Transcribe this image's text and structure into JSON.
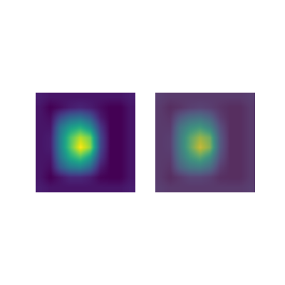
{
  "chart_data": [
    {
      "type": "heatmap",
      "color": "viridis",
      "tick_labels": false,
      "cells": [
        [
          0.12,
          0.1,
          0.1,
          0.1,
          0.1,
          0.1,
          0.1,
          0.1,
          0.1,
          0.12
        ],
        [
          0.1,
          0.05,
          0.08,
          0.12,
          0.14,
          0.12,
          0.08,
          0.05,
          0.05,
          0.1
        ],
        [
          0.1,
          0.08,
          0.25,
          0.35,
          0.38,
          0.3,
          0.12,
          0.05,
          0.05,
          0.1
        ],
        [
          0.1,
          0.1,
          0.4,
          0.55,
          0.62,
          0.5,
          0.2,
          0.05,
          0.05,
          0.1
        ],
        [
          0.1,
          0.12,
          0.45,
          0.7,
          0.85,
          0.75,
          0.25,
          0.05,
          0.05,
          0.1
        ],
        [
          0.1,
          0.12,
          0.45,
          0.72,
          0.95,
          0.8,
          0.25,
          0.05,
          0.05,
          0.1
        ],
        [
          0.1,
          0.1,
          0.4,
          0.6,
          0.7,
          0.55,
          0.2,
          0.05,
          0.05,
          0.1
        ],
        [
          0.1,
          0.08,
          0.3,
          0.42,
          0.45,
          0.35,
          0.12,
          0.05,
          0.05,
          0.1
        ],
        [
          0.1,
          0.05,
          0.1,
          0.15,
          0.15,
          0.12,
          0.06,
          0.05,
          0.05,
          0.1
        ],
        [
          0.12,
          0.1,
          0.1,
          0.1,
          0.1,
          0.1,
          0.1,
          0.1,
          0.1,
          0.12
        ]
      ]
    },
    {
      "type": "overlay",
      "color": "viridis",
      "tick_labels": false,
      "cells": [
        [
          0.12,
          0.1,
          0.1,
          0.1,
          0.1,
          0.1,
          0.1,
          0.1,
          0.1,
          0.12
        ],
        [
          0.1,
          0.05,
          0.08,
          0.12,
          0.14,
          0.12,
          0.08,
          0.05,
          0.05,
          0.1
        ],
        [
          0.1,
          0.08,
          0.25,
          0.35,
          0.38,
          0.3,
          0.12,
          0.05,
          0.05,
          0.1
        ],
        [
          0.1,
          0.1,
          0.4,
          0.55,
          0.62,
          0.5,
          0.2,
          0.05,
          0.05,
          0.1
        ],
        [
          0.1,
          0.12,
          0.45,
          0.7,
          0.85,
          0.75,
          0.25,
          0.05,
          0.05,
          0.1
        ],
        [
          0.1,
          0.12,
          0.45,
          0.72,
          0.95,
          0.8,
          0.25,
          0.05,
          0.05,
          0.1
        ],
        [
          0.1,
          0.1,
          0.4,
          0.6,
          0.7,
          0.55,
          0.2,
          0.05,
          0.05,
          0.1
        ],
        [
          0.1,
          0.08,
          0.3,
          0.42,
          0.45,
          0.35,
          0.12,
          0.05,
          0.05,
          0.1
        ],
        [
          0.1,
          0.05,
          0.1,
          0.15,
          0.15,
          0.12,
          0.06,
          0.05,
          0.05,
          0.1
        ],
        [
          0.12,
          0.1,
          0.1,
          0.1,
          0.1,
          0.1,
          0.1,
          0.1,
          0.1,
          0.12
        ]
      ]
    }
  ]
}
